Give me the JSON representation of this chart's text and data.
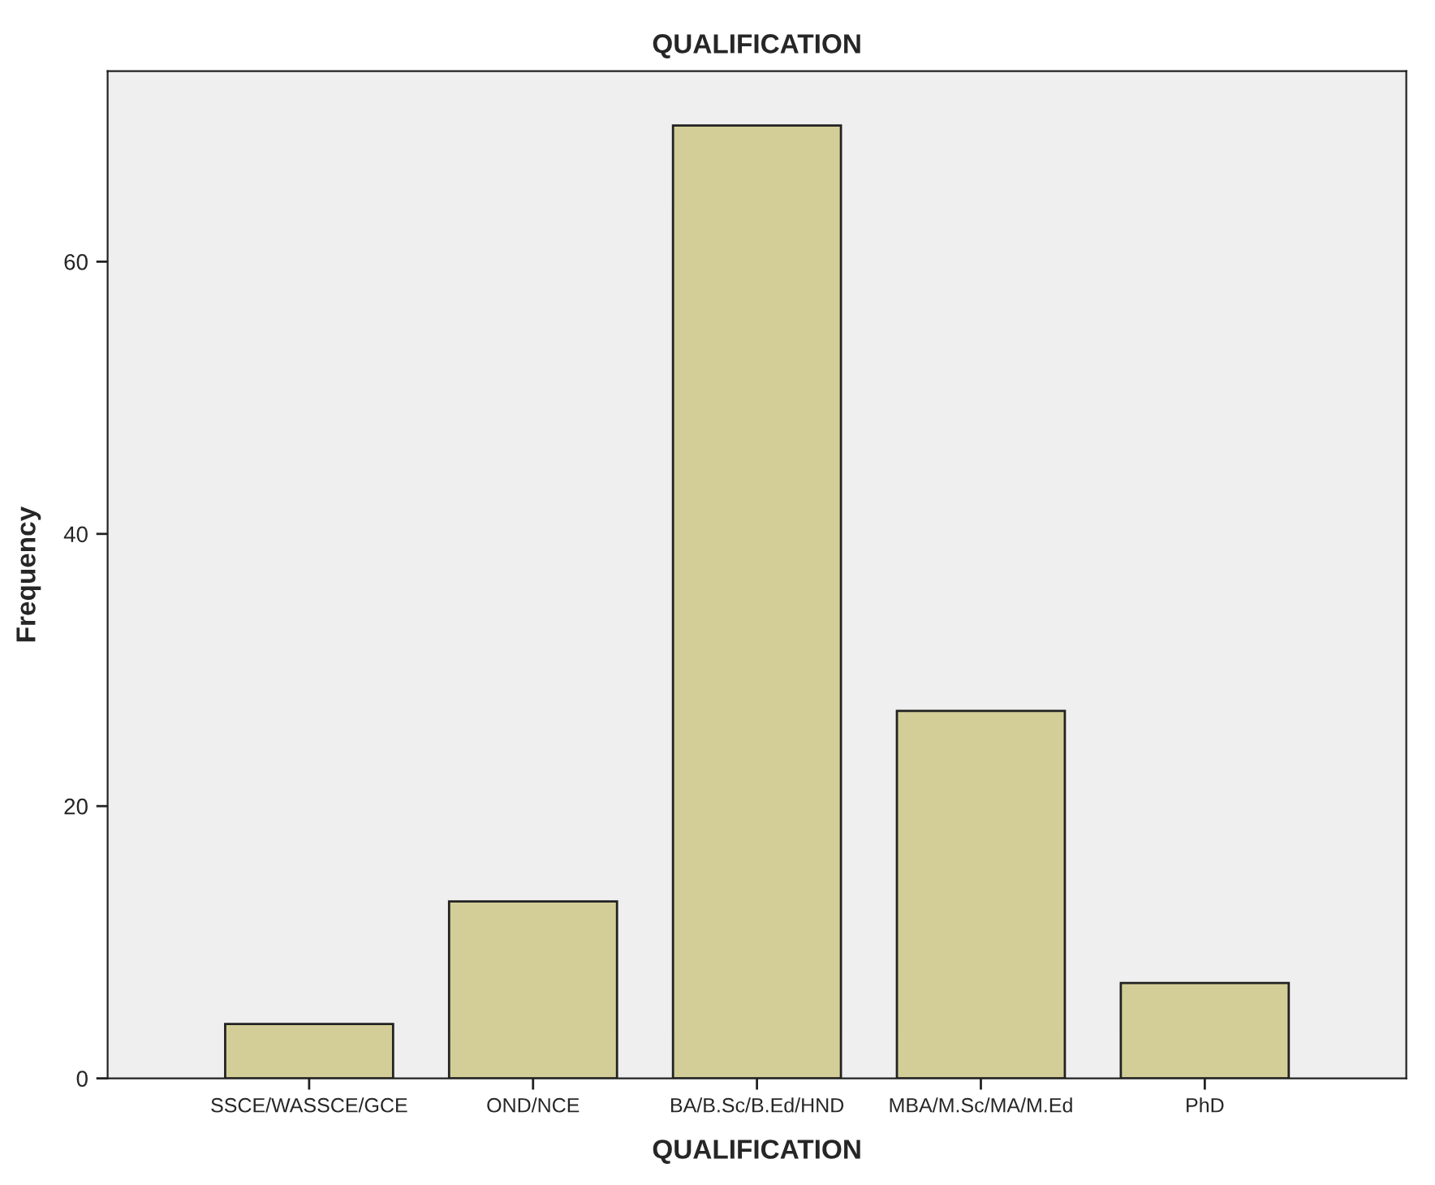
{
  "chart_data": {
    "type": "bar",
    "title": "QUALIFICATION",
    "xlabel": "QUALIFICATION",
    "ylabel": "Frequency",
    "categories": [
      "SSCE/WASSCE/GCE",
      "OND/NCE",
      "BA/B.Sc/B.Ed/HND",
      "MBA/M.Sc/MA/M.Ed",
      "PhD"
    ],
    "values": [
      4,
      13,
      70,
      27,
      7
    ],
    "color": "#d3ce97",
    "ylim": [
      0,
      74
    ],
    "yticks": [
      0,
      20,
      40,
      60
    ],
    "grid": false
  }
}
